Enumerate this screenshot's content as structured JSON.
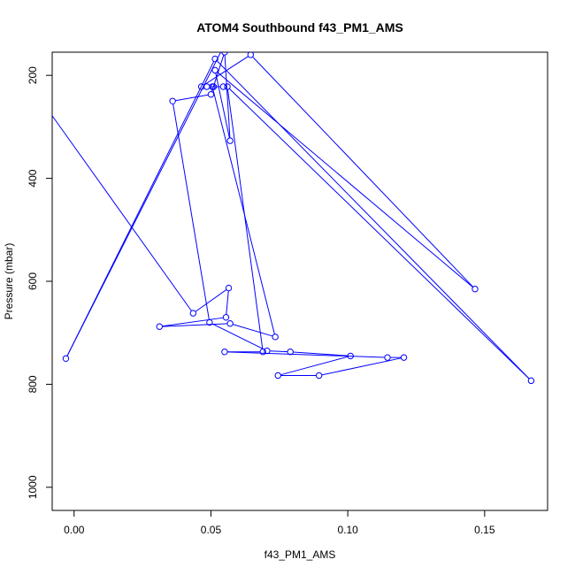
{
  "chart_data": {
    "type": "line",
    "title": "ATOM4 Southbound f43_PM1_AMS",
    "xlabel": "f43_PM1_AMS",
    "ylabel": "Pressure (mbar)",
    "xlim": [
      -0.008,
      0.173
    ],
    "ylim": [
      1045,
      155
    ],
    "y_reversed": true,
    "grid": false,
    "color": "#0000ff",
    "x_ticks": [
      {
        "value": 0.0,
        "label": "0.00"
      },
      {
        "value": 0.05,
        "label": "0.05"
      },
      {
        "value": 0.1,
        "label": "0.10"
      },
      {
        "value": 0.15,
        "label": "0.15"
      }
    ],
    "y_ticks": [
      {
        "value": 200,
        "label": "200"
      },
      {
        "value": 400,
        "label": "400"
      },
      {
        "value": 600,
        "label": "600"
      },
      {
        "value": 800,
        "label": "800"
      },
      {
        "value": 1000,
        "label": "1000"
      }
    ],
    "series": [
      {
        "line_in": [
          -0.04,
          40
        ],
        "line_out": [
          0.055,
          140
        ],
        "x": [
          0.0435,
          0.0565,
          0.0555,
          0.0312,
          0.057,
          0.0735,
          0.0505,
          0.051,
          0.0545,
          0.0485,
          0.0465,
          0.0645,
          0.1465,
          0.0515,
          0.057,
          0.055,
          0.05,
          0.036,
          0.0495,
          0.0705,
          0.079,
          0.101,
          0.0745,
          0.0895,
          0.1205,
          0.1145,
          0.055,
          0.069,
          0.056,
          0.167,
          0.0515,
          -0.003
        ],
        "y": [
          662,
          613,
          670,
          688,
          682,
          708,
          222,
          222,
          222,
          222,
          222,
          160,
          615,
          190,
          327,
          155,
          237,
          250,
          680,
          735,
          737,
          745,
          783,
          783,
          748,
          748,
          737,
          737,
          222,
          793,
          168,
          750
        ]
      }
    ]
  }
}
